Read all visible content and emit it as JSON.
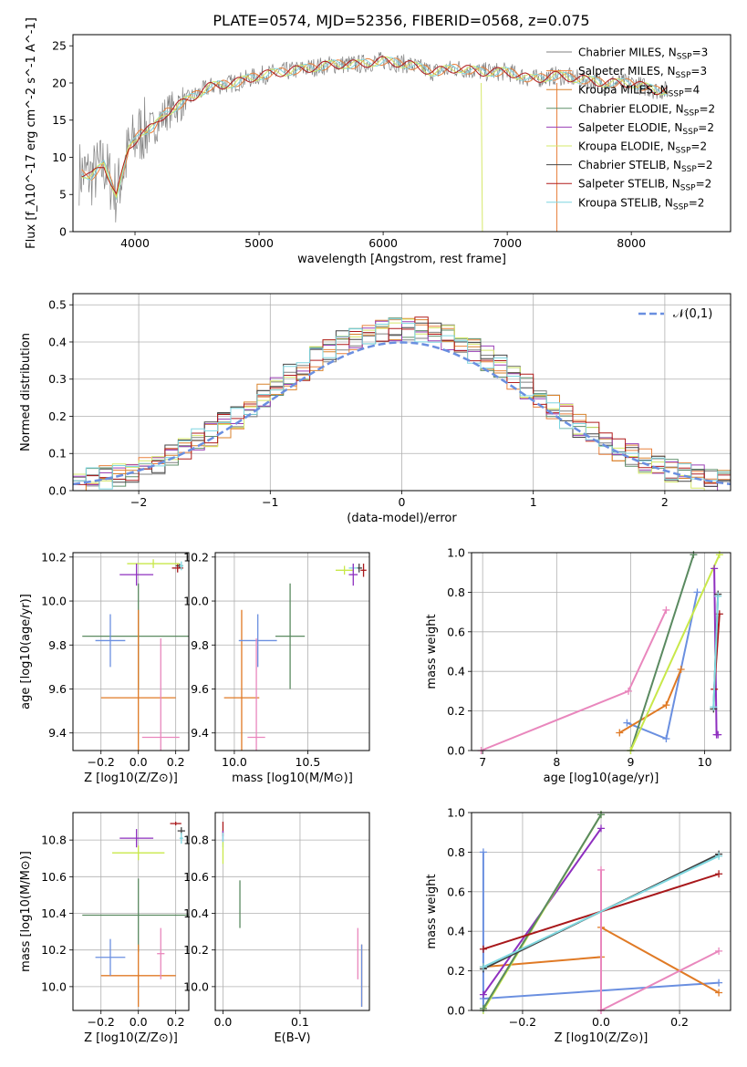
{
  "figure_title": "PLATE=0574, MJD=52356, FIBERID=0568, z=0.075",
  "colors": {
    "chabrier_miles": "#808080",
    "salpeter_miles": "#e8803c",
    "kroupa_miles": "#d9822b",
    "chabrier_elodie": "#5f8f6a",
    "salpeter_elodie": "#9a3fb5",
    "kroupa_elodie": "#d6e86a",
    "chabrier_stelib": "#444444",
    "salpeter_stelib": "#b01c1c",
    "kroupa_stelib": "#7fd6e0",
    "pink": "#e987bd",
    "blue": "#6a8fe0",
    "orange": "#e07a25",
    "purple": "#8e2fbf",
    "green": "#5a8a60",
    "lime": "#c8e84a",
    "dark": "#404040",
    "red": "#a8181b",
    "cyan": "#80d8e0"
  },
  "chart_data": [
    {
      "id": "spectrum",
      "type": "line",
      "xlabel": "wavelength [Angstrom, rest frame]",
      "ylabel": "Flux [f_λ10^-17 erg cm^-2 s^-1 A^-1]",
      "xlim": [
        3500,
        8800
      ],
      "ylim": [
        0,
        26.5
      ],
      "xticks": [
        4000,
        5000,
        6000,
        7000,
        8000
      ],
      "yticks": [
        0,
        5,
        10,
        15,
        20,
        25
      ],
      "grid": false,
      "legend_position": "right",
      "legend": [
        {
          "label": "Chabrier MILES, N_SSP=3",
          "color_key": "chabrier_miles"
        },
        {
          "label": "Salpeter MILES, N_SSP=3",
          "color_key": "salpeter_miles"
        },
        {
          "label": "Kroupa MILES, N_SSP=4",
          "color_key": "kroupa_miles"
        },
        {
          "label": "Chabrier ELODIE, N_SSP=2",
          "color_key": "chabrier_elodie"
        },
        {
          "label": "Salpeter ELODIE, N_SSP=2",
          "color_key": "salpeter_elodie"
        },
        {
          "label": "Kroupa ELODIE, N_SSP=2",
          "color_key": "kroupa_elodie"
        },
        {
          "label": "Chabrier STELIB, N_SSP=2",
          "color_key": "chabrier_stelib"
        },
        {
          "label": "Salpeter STELIB, N_SSP=2",
          "color_key": "salpeter_stelib"
        },
        {
          "label": "Kroupa STELIB, N_SSP=2",
          "color_key": "kroupa_stelib"
        }
      ],
      "data_curve": {
        "x": [
          3550,
          3650,
          3750,
          3850,
          3950,
          4050,
          4150,
          4250,
          4400,
          4600,
          4800,
          5000,
          5200,
          5400,
          5600,
          5800,
          6000,
          6200,
          6400,
          6600,
          6800,
          7000,
          7200,
          7400,
          7600,
          7800,
          8000,
          8200
        ],
        "y": [
          8,
          7.5,
          9,
          5,
          11,
          13.5,
          14,
          16,
          17.5,
          19.5,
          20,
          21,
          21.5,
          22,
          22.5,
          22.5,
          23,
          22.5,
          21.5,
          22,
          21.5,
          21.5,
          20.5,
          21,
          20.5,
          20,
          20,
          19
        ]
      }
    },
    {
      "id": "residuals",
      "type": "histogram",
      "xlabel": "(data-model)/error",
      "ylabel": "Normed distribution",
      "xlim": [
        -2.5,
        2.5
      ],
      "ylim": [
        0,
        0.53
      ],
      "xticks": [
        -2,
        -1,
        0,
        1,
        2
      ],
      "yticks": [
        0.0,
        0.1,
        0.2,
        0.3,
        0.4,
        0.5
      ],
      "grid": true,
      "legend_position": "top-right",
      "legend": [
        {
          "label": "𝒩(0,1)",
          "style": "dashed",
          "color_key": "blue"
        }
      ],
      "bin_width": 0.1
    },
    {
      "id": "age_vs_Z",
      "type": "scatter",
      "xlabel": "Z [log10(Z/Z⊙)]",
      "ylabel": "age  [log10(age/yr)]",
      "xlim": [
        -0.35,
        0.27
      ],
      "ylim": [
        9.32,
        10.22
      ],
      "xticks": [
        -0.2,
        0.0,
        0.2
      ],
      "yticks": [
        9.4,
        9.6,
        9.8,
        10.0,
        10.2
      ],
      "grid": true,
      "points": [
        {
          "x": 0.22,
          "y": 10.16,
          "xerr": 0.02,
          "yerr": 0.01,
          "color_key": "dark"
        },
        {
          "x": 0.21,
          "y": 10.15,
          "xerr": 0.03,
          "yerr": 0.02,
          "color_key": "red"
        },
        {
          "x": 0.23,
          "y": 10.16,
          "xerr": 0.01,
          "yerr": 0.02,
          "color_key": "cyan"
        },
        {
          "x": 0.08,
          "y": 10.17,
          "xerr": 0.14,
          "yerr": 0.02,
          "color_key": "lime"
        },
        {
          "x": -0.01,
          "y": 10.12,
          "xerr": 0.09,
          "yerr": 0.05,
          "color_key": "purple"
        },
        {
          "x": 0.0,
          "y": 9.84,
          "xerr": 0.3,
          "yerr": 0.24,
          "color_key": "green"
        },
        {
          "x": 0.0,
          "y": 9.56,
          "xerr": 0.2,
          "yerr": 0.4,
          "color_key": "orange"
        },
        {
          "x": -0.15,
          "y": 9.82,
          "xerr": 0.08,
          "yerr": 0.12,
          "color_key": "blue"
        },
        {
          "x": 0.12,
          "y": 9.38,
          "xerr": 0.1,
          "yerr": 0.45,
          "color_key": "pink"
        }
      ]
    },
    {
      "id": "age_vs_mass",
      "type": "scatter",
      "xlabel": "mass [log10(M/M⊙)]",
      "ylabel": "",
      "xlim": [
        9.87,
        10.92
      ],
      "ylim": [
        9.32,
        10.22
      ],
      "xticks": [
        10.0,
        10.5
      ],
      "yticks": [
        9.4,
        9.6,
        9.8,
        10.0,
        10.2
      ],
      "grid": true,
      "points": [
        {
          "x": 10.85,
          "y": 10.15,
          "xerr": 0.02,
          "yerr": 0.02,
          "color_key": "dark"
        },
        {
          "x": 10.88,
          "y": 10.14,
          "xerr": 0.02,
          "yerr": 0.03,
          "color_key": "red"
        },
        {
          "x": 10.81,
          "y": 10.15,
          "xerr": 0.03,
          "yerr": 0.02,
          "color_key": "cyan"
        },
        {
          "x": 10.75,
          "y": 10.14,
          "xerr": 0.06,
          "yerr": 0.02,
          "color_key": "lime"
        },
        {
          "x": 10.81,
          "y": 10.12,
          "xerr": 0.03,
          "yerr": 0.05,
          "color_key": "purple"
        },
        {
          "x": 10.38,
          "y": 9.84,
          "xerr": 0.1,
          "yerr": 0.24,
          "color_key": "green"
        },
        {
          "x": 10.05,
          "y": 9.56,
          "xerr": 0.12,
          "yerr": 0.4,
          "color_key": "orange"
        },
        {
          "x": 10.16,
          "y": 9.82,
          "xerr": 0.13,
          "yerr": 0.12,
          "color_key": "blue"
        },
        {
          "x": 10.15,
          "y": 9.38,
          "xerr": 0.06,
          "yerr": 0.45,
          "color_key": "pink"
        }
      ]
    },
    {
      "id": "mass_weight_vs_age",
      "type": "line",
      "xlabel": "age  [log10(age/yr)]",
      "ylabel": "mass weight",
      "xlim": [
        6.85,
        10.35
      ],
      "ylim": [
        0,
        1.0
      ],
      "xticks": [
        7,
        8,
        9,
        10
      ],
      "yticks": [
        0.0,
        0.2,
        0.4,
        0.6,
        0.8,
        1.0
      ],
      "grid": true,
      "series": [
        {
          "color_key": "pink",
          "x": [
            6.98,
            8.97,
            9.48
          ],
          "y": [
            0.0,
            0.3,
            0.71
          ]
        },
        {
          "color_key": "blue",
          "x": [
            8.95,
            9.48,
            9.9
          ],
          "y": [
            0.14,
            0.06,
            0.8
          ]
        },
        {
          "color_key": "orange",
          "x": [
            8.85,
            9.48,
            9.68
          ],
          "y": [
            0.09,
            0.23,
            0.41
          ]
        },
        {
          "color_key": "green",
          "x": [
            9.0,
            9.85
          ],
          "y": [
            0.0,
            0.99
          ]
        },
        {
          "color_key": "lime",
          "x": [
            9.0,
            10.2
          ],
          "y": [
            0.0,
            0.99
          ]
        },
        {
          "color_key": "purple",
          "x": [
            10.13,
            10.16,
            10.18
          ],
          "y": [
            0.92,
            0.08,
            0.08
          ]
        },
        {
          "color_key": "dark",
          "x": [
            10.12,
            10.18
          ],
          "y": [
            0.21,
            0.79
          ]
        },
        {
          "color_key": "red",
          "x": [
            10.13,
            10.2
          ],
          "y": [
            0.31,
            0.69
          ]
        },
        {
          "color_key": "cyan",
          "x": [
            10.12,
            10.18
          ],
          "y": [
            0.22,
            0.78
          ]
        }
      ]
    },
    {
      "id": "mass_vs_Z",
      "type": "scatter",
      "xlabel": "Z [log10(Z/Z⊙)]",
      "ylabel": "mass [log10(M/M⊙)]",
      "xlim": [
        -0.35,
        0.27
      ],
      "ylim": [
        9.87,
        10.95
      ],
      "xticks": [
        -0.2,
        0.0,
        0.2
      ],
      "yticks": [
        10.0,
        10.2,
        10.4,
        10.6,
        10.8
      ],
      "grid": true,
      "points": [
        {
          "x": 0.23,
          "y": 10.85,
          "xerr": 0.02,
          "yerr": 0.02,
          "color_key": "dark"
        },
        {
          "x": 0.2,
          "y": 10.89,
          "xerr": 0.03,
          "yerr": 0.01,
          "color_key": "red"
        },
        {
          "x": 0.23,
          "y": 10.81,
          "xerr": 0.01,
          "yerr": 0.03,
          "color_key": "cyan"
        },
        {
          "x": 0.0,
          "y": 10.73,
          "xerr": 0.14,
          "yerr": 0.04,
          "color_key": "lime"
        },
        {
          "x": -0.01,
          "y": 10.81,
          "xerr": 0.09,
          "yerr": 0.05,
          "color_key": "purple"
        },
        {
          "x": 0.0,
          "y": 10.39,
          "xerr": 0.3,
          "yerr": 0.2,
          "color_key": "green"
        },
        {
          "x": 0.0,
          "y": 10.06,
          "xerr": 0.2,
          "yerr": 0.17,
          "color_key": "orange"
        },
        {
          "x": -0.15,
          "y": 10.16,
          "xerr": 0.08,
          "yerr": 0.1,
          "color_key": "blue"
        },
        {
          "x": 0.12,
          "y": 10.18,
          "xerr": 0.02,
          "yerr": 0.14,
          "color_key": "pink"
        }
      ]
    },
    {
      "id": "mass_vs_ebv",
      "type": "scatter",
      "xlabel": "E(B-V)",
      "ylabel": "",
      "xlim": [
        -0.01,
        0.19
      ],
      "ylim": [
        9.87,
        10.95
      ],
      "xticks": [
        0.0,
        0.1
      ],
      "yticks": [
        10.0,
        10.2,
        10.4,
        10.6,
        10.8
      ],
      "grid": true,
      "points": [
        {
          "x": 0.0,
          "y": 10.86,
          "yerr": 0.04,
          "color_key": "red"
        },
        {
          "x": 0.0,
          "y": 10.82,
          "yerr": 0.03,
          "color_key": "purple"
        },
        {
          "x": 0.0,
          "y": 10.8,
          "yerr": 0.04,
          "color_key": "cyan"
        },
        {
          "x": 0.0,
          "y": 10.73,
          "yerr": 0.06,
          "color_key": "lime"
        },
        {
          "x": 0.022,
          "y": 10.45,
          "yerr": 0.13,
          "color_key": "green"
        },
        {
          "x": 0.175,
          "y": 10.18,
          "yerr": 0.14,
          "color_key": "pink"
        },
        {
          "x": 0.18,
          "y": 10.06,
          "yerr": 0.17,
          "color_key": "orange"
        },
        {
          "x": 0.18,
          "y": 10.06,
          "yerr": 0.17,
          "color_key": "blue"
        }
      ]
    },
    {
      "id": "mass_weight_vs_Z",
      "type": "line",
      "xlabel": "Z [log10(Z/Z⊙)]",
      "ylabel": "mass weight",
      "xlim": [
        -0.33,
        0.33
      ],
      "ylim": [
        0,
        1.0
      ],
      "xticks": [
        -0.2,
        0.0,
        0.2
      ],
      "yticks": [
        0.0,
        0.2,
        0.4,
        0.6,
        0.8,
        1.0
      ],
      "grid": true,
      "series": [
        {
          "color_key": "blue",
          "x": [
            -0.3,
            -0.3,
            -0.3,
            0.3
          ],
          "y": [
            0.8,
            0.0,
            0.06,
            0.14
          ]
        },
        {
          "color_key": "orange",
          "x": [
            -0.3,
            0.0,
            0.0,
            0.3
          ],
          "y": [
            0.22,
            0.27,
            0.42,
            0.09
          ]
        },
        {
          "color_key": "pink",
          "x": [
            0.0,
            0.0,
            0.0,
            0.3
          ],
          "y": [
            0.71,
            0.0,
            0.0,
            0.3
          ]
        },
        {
          "color_key": "purple",
          "x": [
            -0.3,
            0.0
          ],
          "y": [
            0.08,
            0.92
          ]
        },
        {
          "color_key": "lime",
          "x": [
            -0.3,
            0.0
          ],
          "y": [
            0.0,
            0.99
          ]
        },
        {
          "color_key": "green",
          "x": [
            -0.3,
            0.0
          ],
          "y": [
            0.01,
            0.99
          ]
        },
        {
          "color_key": "dark",
          "x": [
            -0.3,
            0.3
          ],
          "y": [
            0.21,
            0.79
          ]
        },
        {
          "color_key": "red",
          "x": [
            -0.3,
            0.3
          ],
          "y": [
            0.31,
            0.69
          ]
        },
        {
          "color_key": "cyan",
          "x": [
            -0.3,
            0.3
          ],
          "y": [
            0.22,
            0.78
          ]
        }
      ]
    }
  ]
}
